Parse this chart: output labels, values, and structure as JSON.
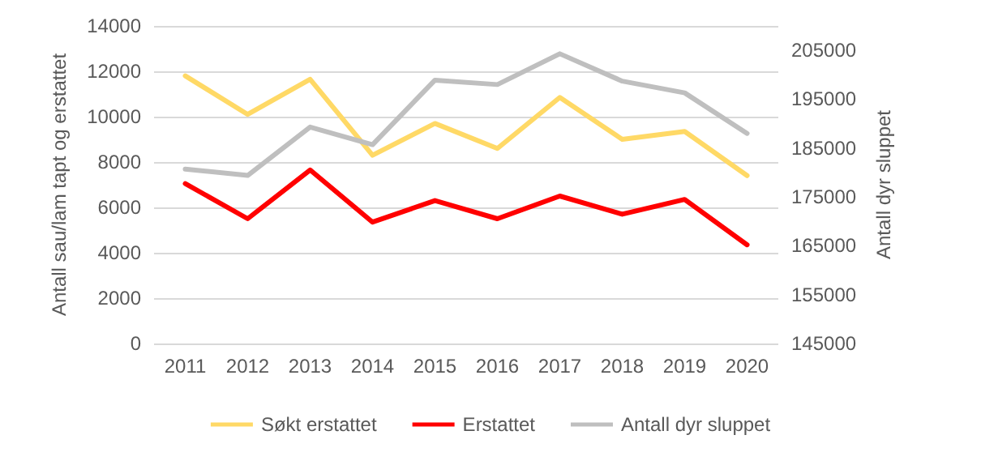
{
  "chart_data": {
    "type": "line",
    "ylabel": "Antall sau/lam tapt og erstattet",
    "y2label": "Antall dyr sluppet",
    "categories": [
      "2011",
      "2012",
      "2013",
      "2014",
      "2015",
      "2016",
      "2017",
      "2018",
      "2019",
      "2020"
    ],
    "series": [
      {
        "name": "Søkt erstattet",
        "color": "#ffd966",
        "values": [
          11800,
          10100,
          11650,
          8300,
          9700,
          8600,
          10850,
          9000,
          9350,
          7400
        ]
      },
      {
        "name": "Erstattet",
        "color": "#ff0000",
        "values": [
          7050,
          5500,
          7650,
          5350,
          6300,
          5500,
          6500,
          5700,
          6350,
          4350
        ]
      },
      {
        "name": "Antall dyr sluppet",
        "color": "#bfbfbf",
        "axis": "y2",
        "values": [
          180700,
          179400,
          189300,
          185700,
          198900,
          198000,
          204300,
          198700,
          196300,
          188000
        ]
      }
    ],
    "ylim": [
      0,
      14000
    ],
    "yticks": [
      0,
      2000,
      4000,
      6000,
      8000,
      10000,
      12000,
      14000
    ],
    "y2lim": [
      145000,
      210000
    ],
    "y2ticks": [
      145000,
      155000,
      165000,
      175000,
      185000,
      195000,
      205000
    ],
    "grid": "y",
    "legend": "bottom",
    "marker": "none",
    "line_style": "solid"
  }
}
